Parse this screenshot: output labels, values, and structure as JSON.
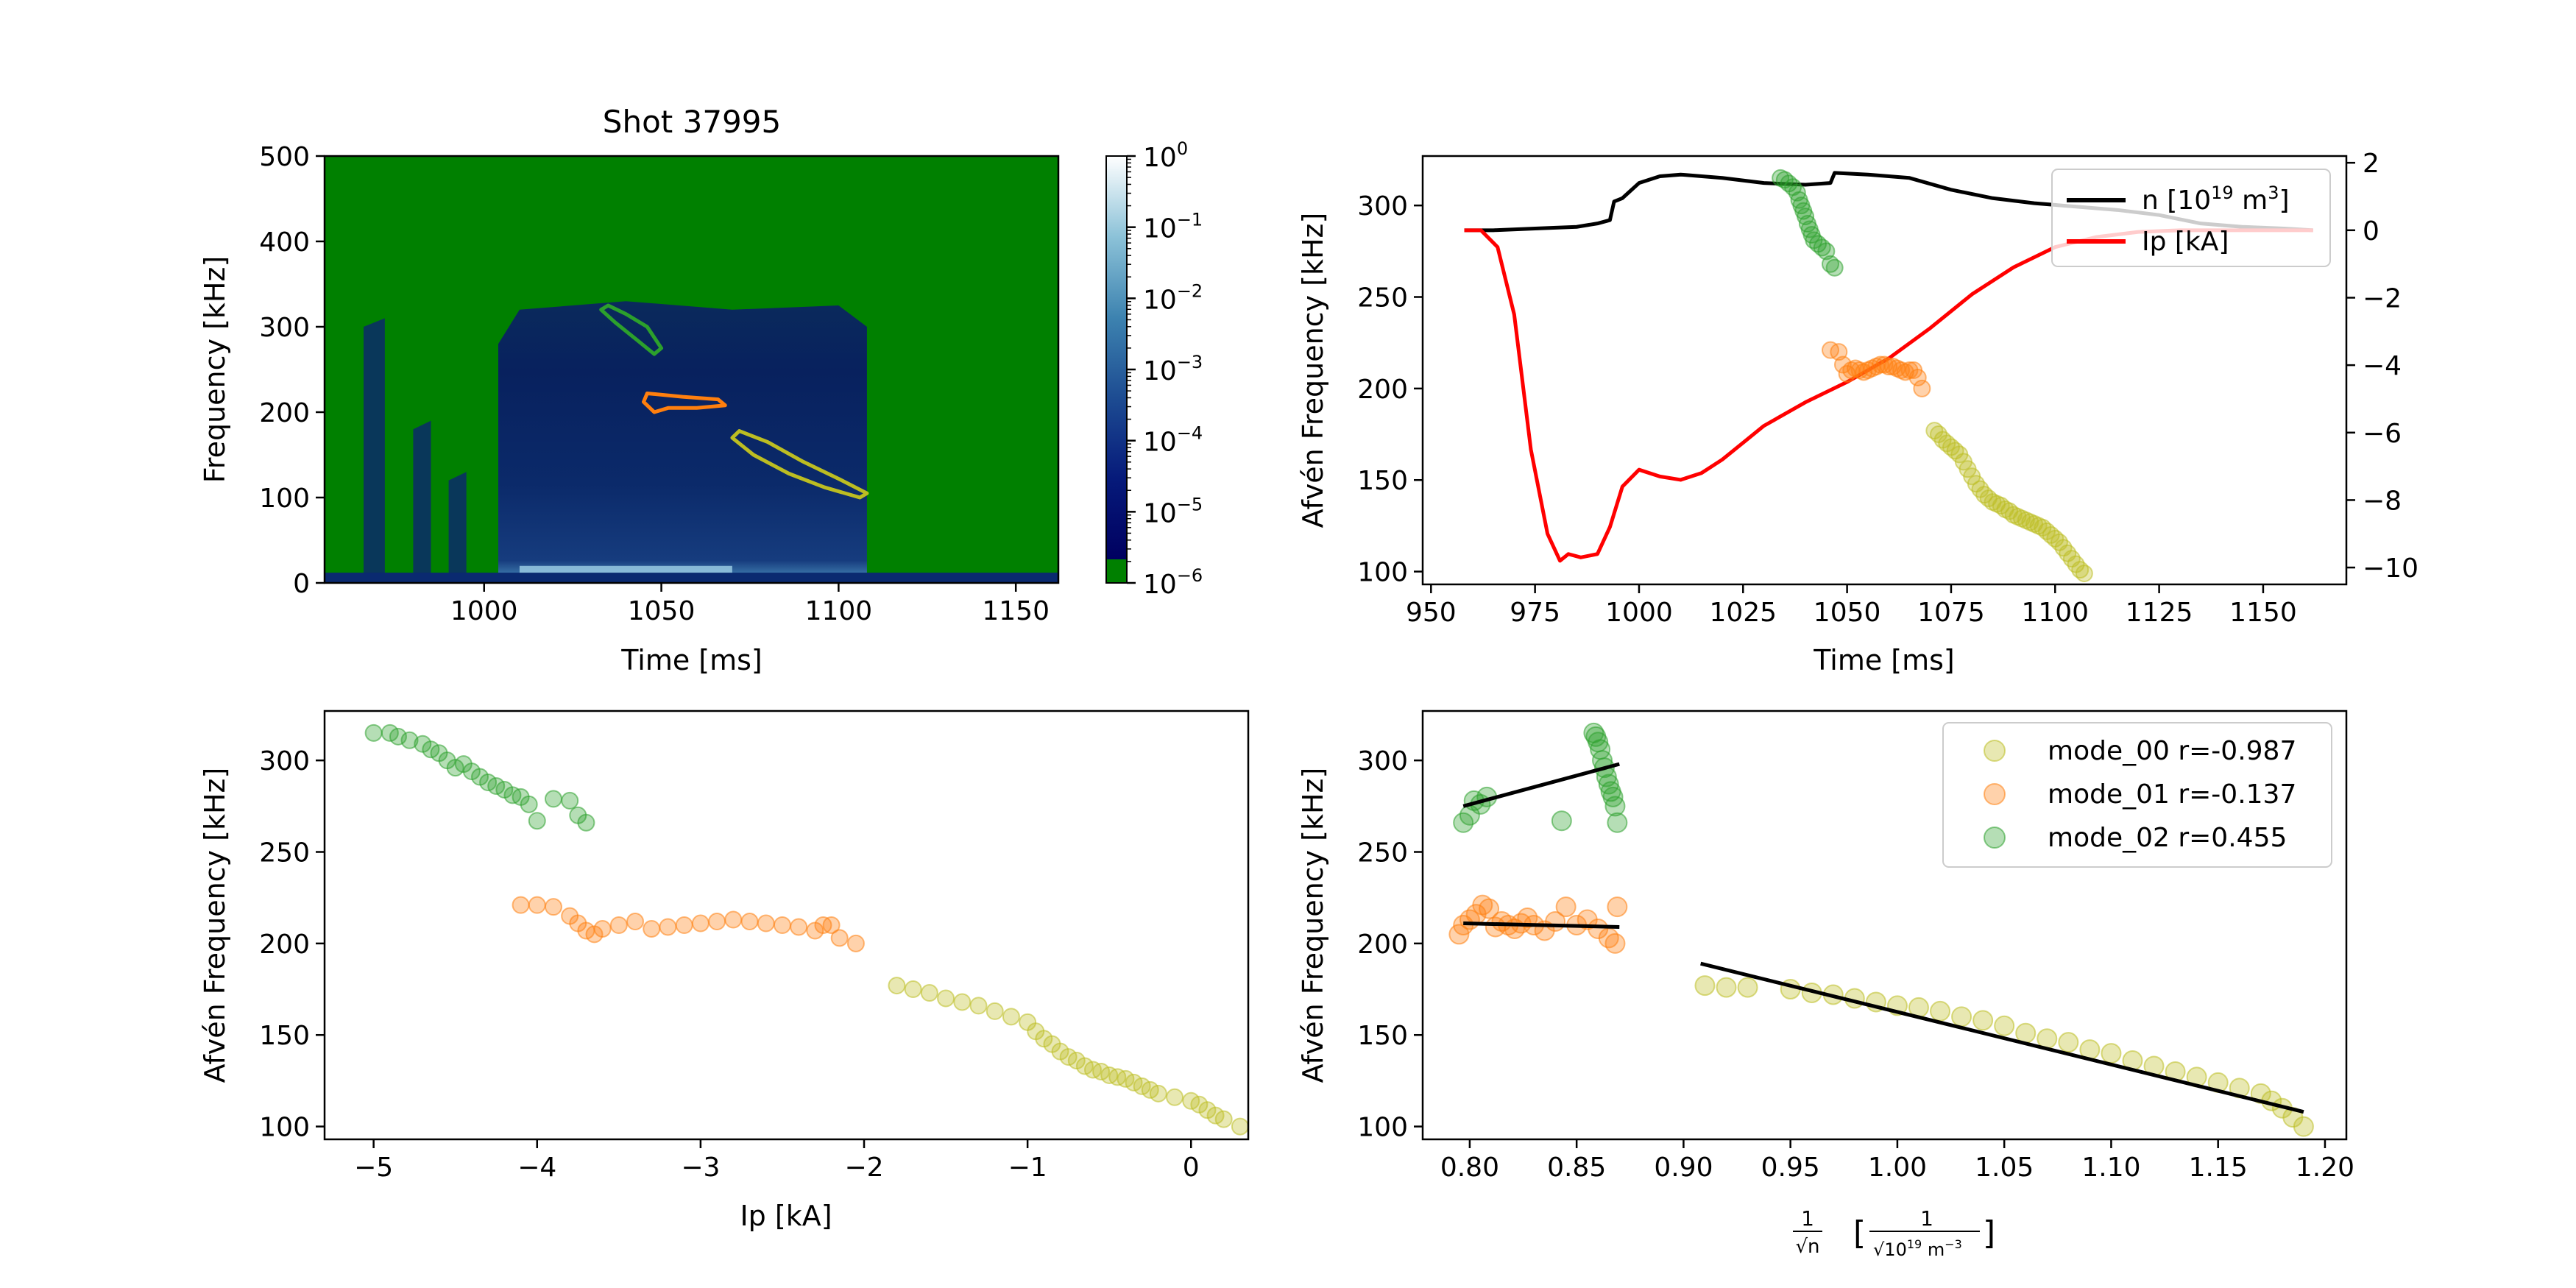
{
  "figure": {
    "title": "Shot 37995"
  },
  "chart_data": [
    {
      "type": "heatmap",
      "id": "spectrogram",
      "title": "Shot 37995",
      "xlabel": "Time [ms]",
      "ylabel": "Frequency [kHz]",
      "xlim": [
        955,
        1162
      ],
      "ylim": [
        0,
        500
      ],
      "xticks": [
        1000,
        1050,
        1100,
        1150
      ],
      "yticks": [
        0,
        100,
        200,
        300,
        400,
        500
      ],
      "colorbar": {
        "scale": "log",
        "ticks": [
          "10",
          "10",
          "10",
          "10",
          "10",
          "10",
          "10"
        ],
        "exponents": [
          "0",
          "−1",
          "−2",
          "−3",
          "−4",
          "−5",
          "−6"
        ],
        "values": [
          1,
          0.1,
          0.01,
          0.001,
          0.0001,
          1e-05,
          1e-06
        ],
        "low_color": "#008000"
      },
      "contours": [
        {
          "name": "mode_02",
          "color": "#2ca02c",
          "points": [
            [
              1035,
              325
            ],
            [
              1040,
              315
            ],
            [
              1046,
              300
            ],
            [
              1050,
              275
            ],
            [
              1048,
              268
            ],
            [
              1043,
              285
            ],
            [
              1037,
              305
            ],
            [
              1033,
              320
            ]
          ]
        },
        {
          "name": "mode_01",
          "color": "#ff7f0e",
          "points": [
            [
              1046,
              222
            ],
            [
              1056,
              218
            ],
            [
              1066,
              215
            ],
            [
              1068,
              208
            ],
            [
              1060,
              205
            ],
            [
              1052,
              205
            ],
            [
              1048,
              200
            ],
            [
              1045,
              212
            ]
          ]
        },
        {
          "name": "mode_00",
          "color": "#bcbd22",
          "points": [
            [
              1072,
              178
            ],
            [
              1080,
              165
            ],
            [
              1090,
              142
            ],
            [
              1100,
              122
            ],
            [
              1108,
              105
            ],
            [
              1106,
              100
            ],
            [
              1096,
              112
            ],
            [
              1086,
              128
            ],
            [
              1076,
              150
            ],
            [
              1070,
              170
            ]
          ]
        }
      ]
    },
    {
      "type": "line",
      "id": "time-traces",
      "xlabel": "Time [ms]",
      "ylabel": "Afvén Frequency [kHz]",
      "xlim": [
        948,
        1170
      ],
      "ylim": [
        93,
        327
      ],
      "y2lim": [
        -10.5,
        2.2
      ],
      "xticks": [
        950,
        975,
        1000,
        1025,
        1050,
        1075,
        1100,
        1125,
        1150
      ],
      "yticks": [
        100,
        150,
        200,
        250,
        300
      ],
      "y2ticks": [
        2,
        0,
        -2,
        -4,
        -6,
        -8,
        -10
      ],
      "legend": {
        "position": "top-right",
        "entries": [
          {
            "label_main": "n  [10",
            "label_sup": "19",
            "label_tail": " m",
            "label_sup2": "3",
            "label_end": "]",
            "color": "#000000"
          },
          {
            "label_main": "Ip [kA]",
            "label_sup": "",
            "label_tail": "",
            "label_sup2": "",
            "label_end": "",
            "color": "#ff0000"
          }
        ]
      },
      "series": [
        {
          "name": "n",
          "axis": "right",
          "color": "#000000",
          "x": [
            958,
            965,
            975,
            985,
            990,
            993,
            994,
            996,
            1000,
            1005,
            1010,
            1020,
            1030,
            1040,
            1046,
            1047,
            1055,
            1065,
            1075,
            1085,
            1095,
            1105,
            1115,
            1125,
            1135,
            1145,
            1155,
            1162
          ],
          "y": [
            0.0,
            0.0,
            0.05,
            0.1,
            0.2,
            0.3,
            0.85,
            0.95,
            1.4,
            1.6,
            1.65,
            1.55,
            1.4,
            1.35,
            1.4,
            1.7,
            1.65,
            1.55,
            1.2,
            0.95,
            0.8,
            0.7,
            0.6,
            0.45,
            0.2,
            0.1,
            0.05,
            0.0
          ]
        },
        {
          "name": "Ip",
          "axis": "right",
          "color": "#ff0000",
          "x": [
            958,
            962,
            966,
            970,
            974,
            978,
            981,
            983,
            986,
            990,
            993,
            996,
            1000,
            1005,
            1010,
            1015,
            1020,
            1025,
            1030,
            1040,
            1050,
            1060,
            1070,
            1080,
            1090,
            1100,
            1110,
            1120,
            1130,
            1140,
            1150,
            1162
          ],
          "y": [
            0.0,
            0.0,
            -0.5,
            -2.5,
            -6.5,
            -9.0,
            -9.8,
            -9.6,
            -9.7,
            -9.6,
            -8.8,
            -7.6,
            -7.1,
            -7.3,
            -7.4,
            -7.2,
            -6.8,
            -6.3,
            -5.8,
            -5.1,
            -4.5,
            -3.8,
            -2.9,
            -1.9,
            -1.1,
            -0.5,
            -0.2,
            -0.05,
            0.0,
            0.0,
            0.0,
            0.0
          ]
        },
        {
          "name": "mode_02",
          "axis": "left",
          "type": "scatter",
          "color": "#2ca02c",
          "x": [
            1034,
            1035,
            1036,
            1037,
            1038,
            1038.5,
            1039,
            1039.5,
            1040,
            1040.5,
            1041,
            1041.5,
            1042,
            1043,
            1044,
            1045,
            1046,
            1047
          ],
          "y": [
            315,
            314,
            312,
            310,
            307,
            303,
            300,
            297,
            294,
            290,
            287,
            284,
            281,
            279,
            277,
            275,
            268,
            266
          ]
        },
        {
          "name": "mode_01",
          "axis": "left",
          "type": "scatter",
          "color": "#ff7f0e",
          "x": [
            1046,
            1048,
            1049,
            1050,
            1051,
            1052,
            1053,
            1054,
            1055,
            1056,
            1057,
            1058,
            1059,
            1060,
            1061,
            1062,
            1063,
            1064,
            1065,
            1066,
            1067,
            1068
          ],
          "y": [
            221,
            220,
            213,
            208,
            210,
            211,
            210,
            209,
            210,
            211,
            212,
            213,
            213,
            212,
            212,
            211,
            210,
            209,
            210,
            210,
            206,
            200
          ]
        },
        {
          "name": "mode_00",
          "axis": "left",
          "type": "scatter",
          "color": "#bcbd22",
          "x": [
            1071,
            1072,
            1073,
            1074,
            1075,
            1076,
            1077,
            1078,
            1079,
            1080,
            1081,
            1082,
            1083,
            1084,
            1085,
            1086,
            1087,
            1088,
            1089,
            1090,
            1091,
            1092,
            1093,
            1094,
            1095,
            1096,
            1097,
            1098,
            1099,
            1100,
            1101,
            1102,
            1103,
            1104,
            1105,
            1106,
            1107
          ],
          "y": [
            177,
            175,
            172,
            170,
            168,
            166,
            164,
            160,
            156,
            152,
            148,
            145,
            142,
            140,
            138,
            137,
            136,
            134,
            133,
            131,
            130,
            129,
            128,
            127,
            126,
            125,
            124,
            122,
            120,
            118,
            116,
            113,
            110,
            107,
            104,
            101,
            99
          ]
        }
      ]
    },
    {
      "type": "scatter",
      "id": "freq-vs-ip",
      "xlabel": "Ip [kA]",
      "ylabel": "Afvén Frequency [kHz]",
      "xlim": [
        -5.3,
        0.35
      ],
      "ylim": [
        93,
        327
      ],
      "xticks": [
        -5,
        -4,
        -3,
        -2,
        -1,
        0
      ],
      "xticklabels": [
        "−5",
        "−4",
        "−3",
        "−2",
        "−1",
        "0"
      ],
      "yticks": [
        100,
        150,
        200,
        250,
        300
      ],
      "series": [
        {
          "name": "mode_02",
          "color": "#2ca02c",
          "x": [
            -5.0,
            -4.9,
            -4.85,
            -4.78,
            -4.7,
            -4.65,
            -4.6,
            -4.55,
            -4.5,
            -4.45,
            -4.4,
            -4.35,
            -4.3,
            -4.25,
            -4.2,
            -4.15,
            -4.1,
            -4.05,
            -4.0,
            -3.9,
            -3.8,
            -3.75,
            -3.7
          ],
          "y": [
            315,
            315,
            313,
            311,
            309,
            306,
            304,
            300,
            296,
            298,
            294,
            291,
            288,
            286,
            284,
            281,
            280,
            276,
            267,
            279,
            278,
            270,
            266
          ]
        },
        {
          "name": "mode_01",
          "color": "#ff7f0e",
          "x": [
            -4.1,
            -4.0,
            -3.9,
            -3.8,
            -3.75,
            -3.7,
            -3.65,
            -3.6,
            -3.5,
            -3.4,
            -3.3,
            -3.2,
            -3.1,
            -3.0,
            -2.9,
            -2.8,
            -2.7,
            -2.6,
            -2.5,
            -2.4,
            -2.3,
            -2.25,
            -2.2,
            -2.15,
            -2.05
          ],
          "y": [
            221,
            221,
            220,
            215,
            211,
            207,
            205,
            208,
            210,
            212,
            208,
            209,
            210,
            211,
            212,
            213,
            212,
            211,
            210,
            209,
            207,
            210,
            210,
            203,
            200
          ]
        },
        {
          "name": "mode_00",
          "color": "#bcbd22",
          "x": [
            -1.8,
            -1.7,
            -1.6,
            -1.5,
            -1.4,
            -1.3,
            -1.2,
            -1.1,
            -1.0,
            -0.95,
            -0.9,
            -0.85,
            -0.8,
            -0.75,
            -0.7,
            -0.65,
            -0.6,
            -0.55,
            -0.5,
            -0.45,
            -0.4,
            -0.35,
            -0.3,
            -0.25,
            -0.2,
            -0.1,
            0.0,
            0.05,
            0.1,
            0.15,
            0.2,
            0.3
          ],
          "y": [
            177,
            175,
            173,
            170,
            168,
            166,
            163,
            160,
            157,
            152,
            148,
            145,
            141,
            138,
            136,
            133,
            131,
            130,
            128,
            127,
            126,
            124,
            122,
            120,
            118,
            116,
            114,
            112,
            109,
            106,
            104,
            100
          ]
        }
      ]
    },
    {
      "type": "scatter",
      "id": "freq-vs-invsqrt-n",
      "xlabel_main": "1",
      "xlabel_den": "√n",
      "xlabel_unit_num": "1",
      "xlabel_unit_den": "√10",
      "xlabel_unit_den_sup": "19",
      "xlabel_unit_den_tail": " m",
      "xlabel_unit_den_sup2": "−3",
      "ylabel": "Afvén Frequency [kHz]",
      "xlim": [
        0.778,
        1.21
      ],
      "ylim": [
        93,
        327
      ],
      "xticks": [
        0.8,
        0.85,
        0.9,
        0.95,
        1.0,
        1.05,
        1.1,
        1.15,
        1.2
      ],
      "xticklabels": [
        "0.80",
        "0.85",
        "0.90",
        "0.95",
        "1.00",
        "1.05",
        "1.10",
        "1.15",
        "1.20"
      ],
      "yticks": [
        100,
        150,
        200,
        250,
        300
      ],
      "legend": {
        "position": "top-right",
        "entries": [
          {
            "label": "mode_00 r=-0.987",
            "color": "#bcbd22"
          },
          {
            "label": "mode_01 r=-0.137",
            "color": "#ff7f0e"
          },
          {
            "label": "mode_02 r=0.455",
            "color": "#2ca02c"
          }
        ]
      },
      "fits": [
        {
          "name": "mode_00",
          "x": [
            0.908,
            1.19
          ],
          "y": [
            189,
            108
          ]
        },
        {
          "name": "mode_01",
          "x": [
            0.797,
            0.87
          ],
          "y": [
            211,
            209
          ]
        },
        {
          "name": "mode_02",
          "x": [
            0.797,
            0.87
          ],
          "y": [
            275,
            298
          ]
        }
      ],
      "series": [
        {
          "name": "mode_02",
          "color": "#2ca02c",
          "x": [
            0.797,
            0.8,
            0.802,
            0.805,
            0.808,
            0.843,
            0.858,
            0.859,
            0.86,
            0.861,
            0.862,
            0.863,
            0.864,
            0.865,
            0.866,
            0.867,
            0.868,
            0.869
          ],
          "y": [
            266,
            270,
            278,
            276,
            280,
            267,
            315,
            313,
            310,
            306,
            300,
            296,
            291,
            287,
            283,
            280,
            275,
            266
          ]
        },
        {
          "name": "mode_01",
          "color": "#ff7f0e",
          "x": [
            0.795,
            0.797,
            0.8,
            0.803,
            0.806,
            0.809,
            0.812,
            0.815,
            0.818,
            0.821,
            0.824,
            0.827,
            0.83,
            0.835,
            0.84,
            0.845,
            0.85,
            0.855,
            0.86,
            0.865,
            0.868,
            0.869
          ],
          "y": [
            205,
            210,
            213,
            216,
            221,
            219,
            209,
            212,
            210,
            208,
            211,
            214,
            210,
            207,
            212,
            220,
            210,
            213,
            208,
            203,
            200,
            220
          ]
        },
        {
          "name": "mode_00",
          "color": "#bcbd22",
          "x": [
            0.91,
            0.92,
            0.93,
            0.95,
            0.96,
            0.97,
            0.98,
            0.99,
            1.0,
            1.01,
            1.02,
            1.03,
            1.04,
            1.05,
            1.06,
            1.07,
            1.08,
            1.09,
            1.1,
            1.11,
            1.12,
            1.13,
            1.14,
            1.15,
            1.16,
            1.17,
            1.175,
            1.18,
            1.185,
            1.19
          ],
          "y": [
            177,
            176,
            176,
            175,
            173,
            172,
            170,
            168,
            166,
            165,
            163,
            160,
            158,
            155,
            151,
            148,
            146,
            142,
            140,
            136,
            133,
            130,
            127,
            124,
            121,
            118,
            114,
            110,
            105,
            100
          ]
        }
      ]
    }
  ]
}
